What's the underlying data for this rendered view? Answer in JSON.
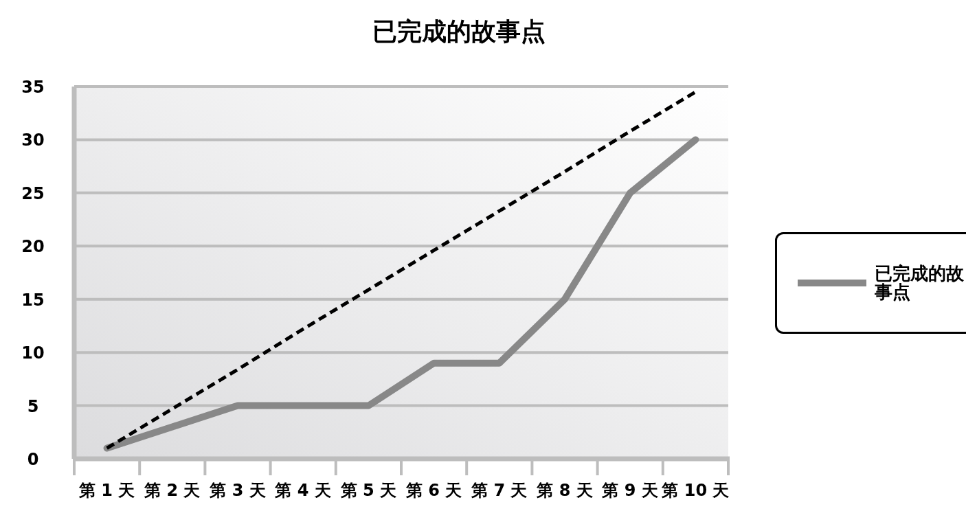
{
  "chart_data": {
    "type": "line",
    "title": "已完成的故事点",
    "categories": [
      "第 1 天",
      "第 2 天",
      "第 3 天",
      "第 4 天",
      "第 5 天",
      "第 6 天",
      "第 7 天",
      "第 8 天",
      "第 9 天",
      "第 10 天"
    ],
    "series": [
      {
        "name": "已完成的故事点",
        "color": "#888888",
        "line_style": "solid",
        "values": [
          1,
          3,
          5,
          5,
          5,
          9,
          9,
          15,
          25,
          30
        ]
      },
      {
        "color": "#000000",
        "line_style": "dashed",
        "values": [
          1,
          4.7,
          8.4,
          12.2,
          15.9,
          19.6,
          23.3,
          27,
          30.8,
          34.5
        ]
      }
    ],
    "ylim": [
      0,
      35
    ],
    "yticks": [
      0,
      5,
      10,
      15,
      20,
      25,
      30,
      35
    ],
    "grid": "y",
    "legend": "right"
  }
}
